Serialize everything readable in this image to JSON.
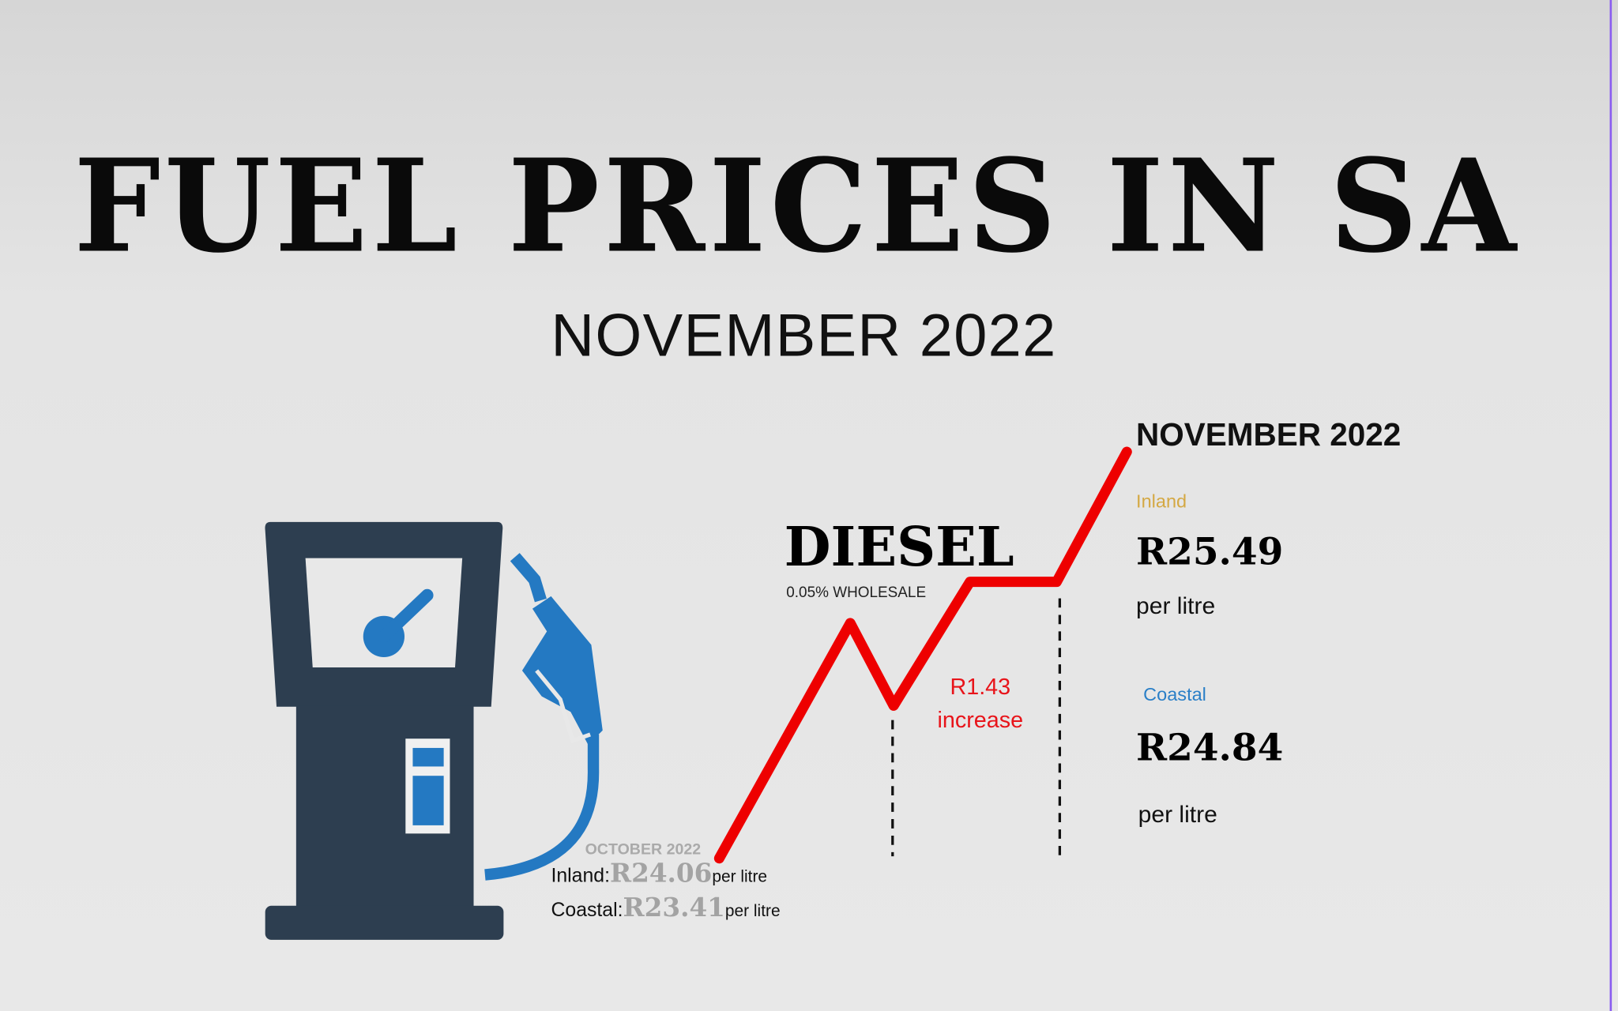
{
  "title": "FUEL PRICES IN SA",
  "subtitle": "NOVEMBER 2022",
  "fuel_type": "DIESEL",
  "wholesale_note": "0.05% WHOLESALE",
  "change": {
    "line1": "R1.43",
    "line2": "increase"
  },
  "november": {
    "heading": "NOVEMBER 2022",
    "inland": {
      "label": "Inland",
      "price": "R25.49",
      "unit": "per litre"
    },
    "coastal": {
      "label": "Coastal",
      "price": "R24.84",
      "unit": "per litre"
    }
  },
  "october": {
    "heading": "OCTOBER 2022",
    "inland": {
      "label": "Inland:",
      "price": "R24.06",
      "unit": "per litre"
    },
    "coastal": {
      "label": "Coastal:",
      "price": "R23.41",
      "unit": "per litre"
    }
  },
  "colors": {
    "pump": "#2d3e50",
    "accent_blue": "#2479c2",
    "trend_red": "#ee0000",
    "inland_label": "#d4a843",
    "coastal_label": "#2a7fc7"
  },
  "icons": [
    "fuel-pump-icon",
    "trend-line-icon"
  ]
}
